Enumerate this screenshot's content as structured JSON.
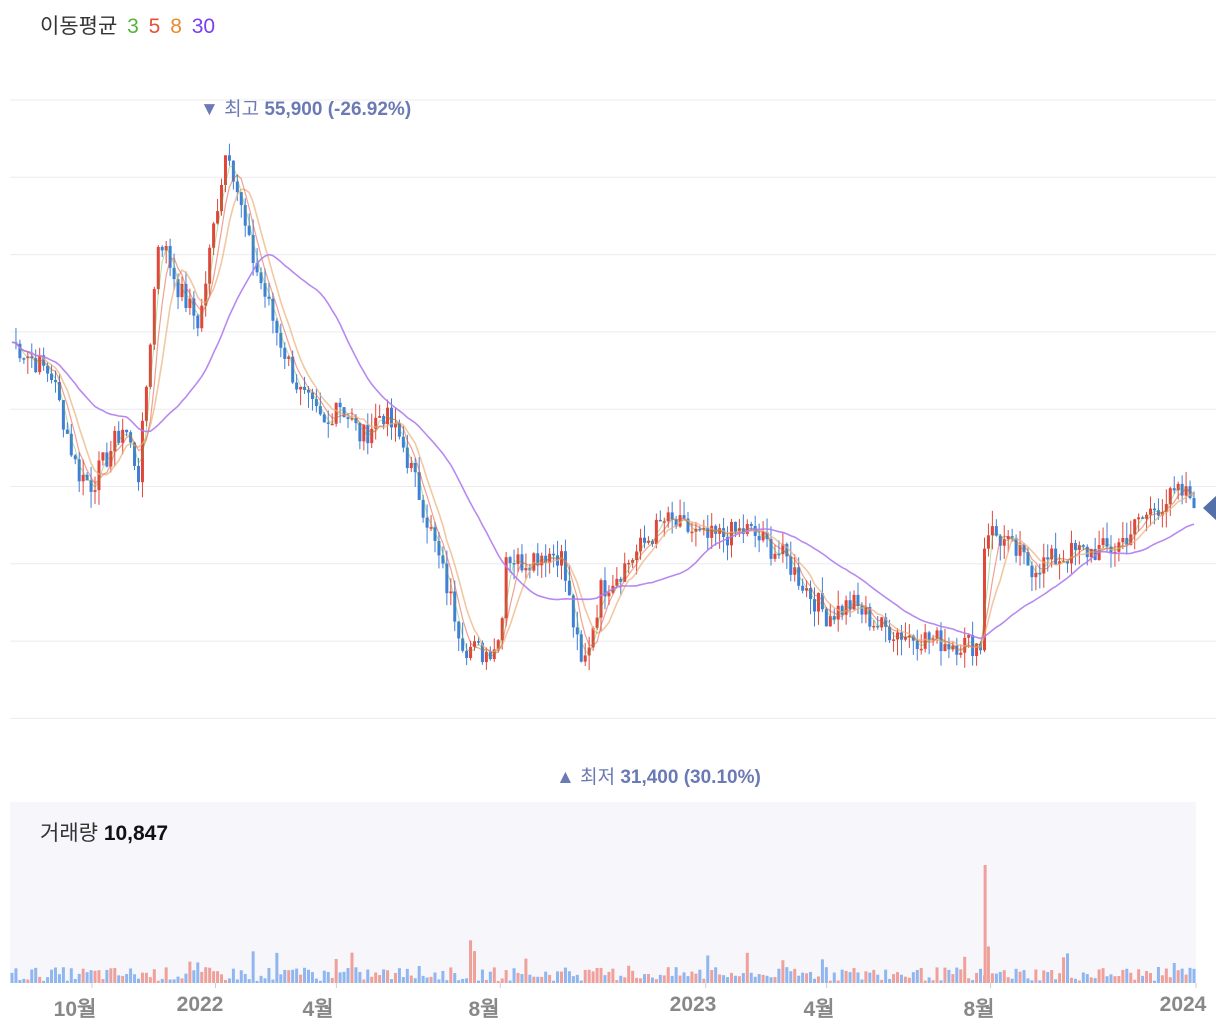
{
  "legend": {
    "label": "이동평균",
    "ma": [
      {
        "period": "3",
        "color": "#55b43a"
      },
      {
        "period": "5",
        "color": "#e8503a"
      },
      {
        "period": "8",
        "color": "#e88a2e"
      },
      {
        "period": "30",
        "color": "#7b3ef0"
      }
    ]
  },
  "annotations": {
    "high": {
      "prefix": "▼ 최고",
      "value": "55,900 (-26.92%)"
    },
    "low": {
      "prefix": "▲ 최저",
      "value": "31,400 (30.10%)"
    }
  },
  "volume": {
    "label": "거래량",
    "value": "10,847"
  },
  "colors": {
    "up": "#e0463a",
    "down": "#3f7fd6",
    "ma30": "#b07cf0",
    "ma8": "#e9b07a",
    "vol_up": "#f0a09a",
    "vol_down": "#8fb6ee",
    "grid": "#ececf0"
  },
  "chart_data": {
    "type": "candlestick",
    "x_ticks": [
      "10월",
      "2022",
      "4월",
      "8월",
      "2023",
      "4월",
      "8월",
      "2024"
    ],
    "x_tick_dates": [
      "2021-10",
      "2022-01",
      "2022-04",
      "2022-08",
      "2023-01",
      "2023-04",
      "2023-08",
      "2024-01"
    ],
    "x_range": [
      "2021-08",
      "2024-01"
    ],
    "y_range": [
      30000,
      57000
    ],
    "high": 55900,
    "low": 31400,
    "close_path": [
      [
        "2021-08",
        46500
      ],
      [
        "2021-09",
        45000
      ],
      [
        "2021-09-20",
        40800
      ],
      [
        "2021-10",
        40200
      ],
      [
        "2021-10-25",
        42800
      ],
      [
        "2021-11-05",
        40600
      ],
      [
        "2021-11-20",
        51200
      ],
      [
        "2021-12-05",
        48700
      ],
      [
        "2021-12-20",
        47200
      ],
      [
        "2022-01",
        52000
      ],
      [
        "2022-01-10",
        55200
      ],
      [
        "2022-01-25",
        50800
      ],
      [
        "2022-02-15",
        47000
      ],
      [
        "2022-03-05",
        44200
      ],
      [
        "2022-03-25",
        42600
      ],
      [
        "2022-04",
        44000
      ],
      [
        "2022-04-20",
        42200
      ],
      [
        "2022-05-05",
        43400
      ],
      [
        "2022-05-20",
        42000
      ],
      [
        "2022-06-05",
        39200
      ],
      [
        "2022-06-20",
        36200
      ],
      [
        "2022-07-05",
        33200
      ],
      [
        "2022-07-20",
        32800
      ],
      [
        "2022-08",
        33500
      ],
      [
        "2022-08-05",
        37200
      ],
      [
        "2022-08-15",
        36800
      ],
      [
        "2022-09-01",
        37200
      ],
      [
        "2022-09-15",
        37200
      ],
      [
        "2022-10-01",
        32000
      ],
      [
        "2022-10-15",
        35600
      ],
      [
        "2022-11-01",
        36600
      ],
      [
        "2022-12-01",
        38600
      ],
      [
        "2022-12-20",
        38200
      ],
      [
        "2023-01",
        37800
      ],
      [
        "2023-02-01",
        38200
      ],
      [
        "2023-03-01",
        37000
      ],
      [
        "2023-03-20",
        35400
      ],
      [
        "2023-04",
        34500
      ],
      [
        "2023-04-20",
        35000
      ],
      [
        "2023-05-10",
        34000
      ],
      [
        "2023-06-01",
        33600
      ],
      [
        "2023-07-01",
        33300
      ],
      [
        "2023-07-25",
        33200
      ],
      [
        "2023-07-28",
        38400
      ],
      [
        "2023-08",
        38200
      ],
      [
        "2023-09-01",
        36600
      ],
      [
        "2023-10-01",
        37200
      ],
      [
        "2023-11-01",
        37400
      ],
      [
        "2023-12-01",
        39200
      ],
      [
        "2023-12-20",
        39800
      ],
      [
        "2024-01",
        39600
      ]
    ],
    "series": [
      {
        "name": "3",
        "values": "ma of close_path"
      },
      {
        "name": "5",
        "values": "ma of close_path"
      },
      {
        "name": "8",
        "values": "ma of close_path"
      },
      {
        "name": "30",
        "values": "ma of close_path"
      }
    ],
    "volume_spike": [
      "2023-07-28",
      10847
    ]
  }
}
